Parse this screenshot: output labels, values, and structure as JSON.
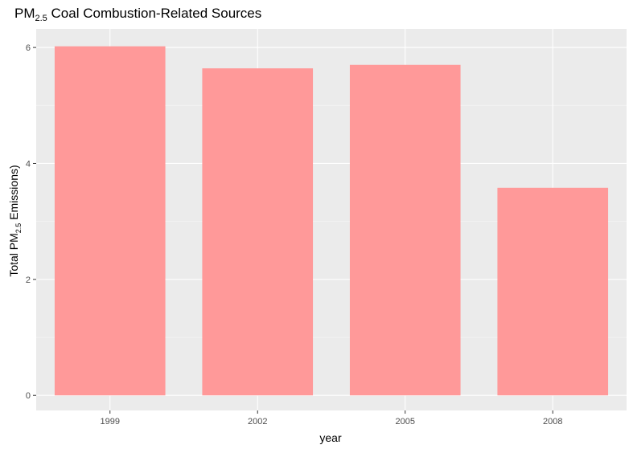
{
  "chart_data": {
    "type": "bar",
    "title": {
      "main": "PM",
      "sub": "2.5",
      "rest": " Coal Combustion-Related Sources"
    },
    "xlabel": "year",
    "ylabel": {
      "pre": "Total PM",
      "sub": "2.5",
      "post": " Emissions)"
    },
    "categories": [
      "1999",
      "2002",
      "2005",
      "2008"
    ],
    "values": [
      6.02,
      5.64,
      5.7,
      3.58
    ],
    "ylim": [
      -0.26,
      6.32
    ],
    "yticks": [
      0,
      2,
      4,
      6
    ],
    "grid": true,
    "legend": "none",
    "colors": {
      "bar": "#ff9999",
      "panel": "#ebebeb",
      "grid_major": "#ffffff",
      "grid_minor": "#f5f5f5",
      "tick_text": "#4d4d4d",
      "title_text": "#000000"
    }
  }
}
